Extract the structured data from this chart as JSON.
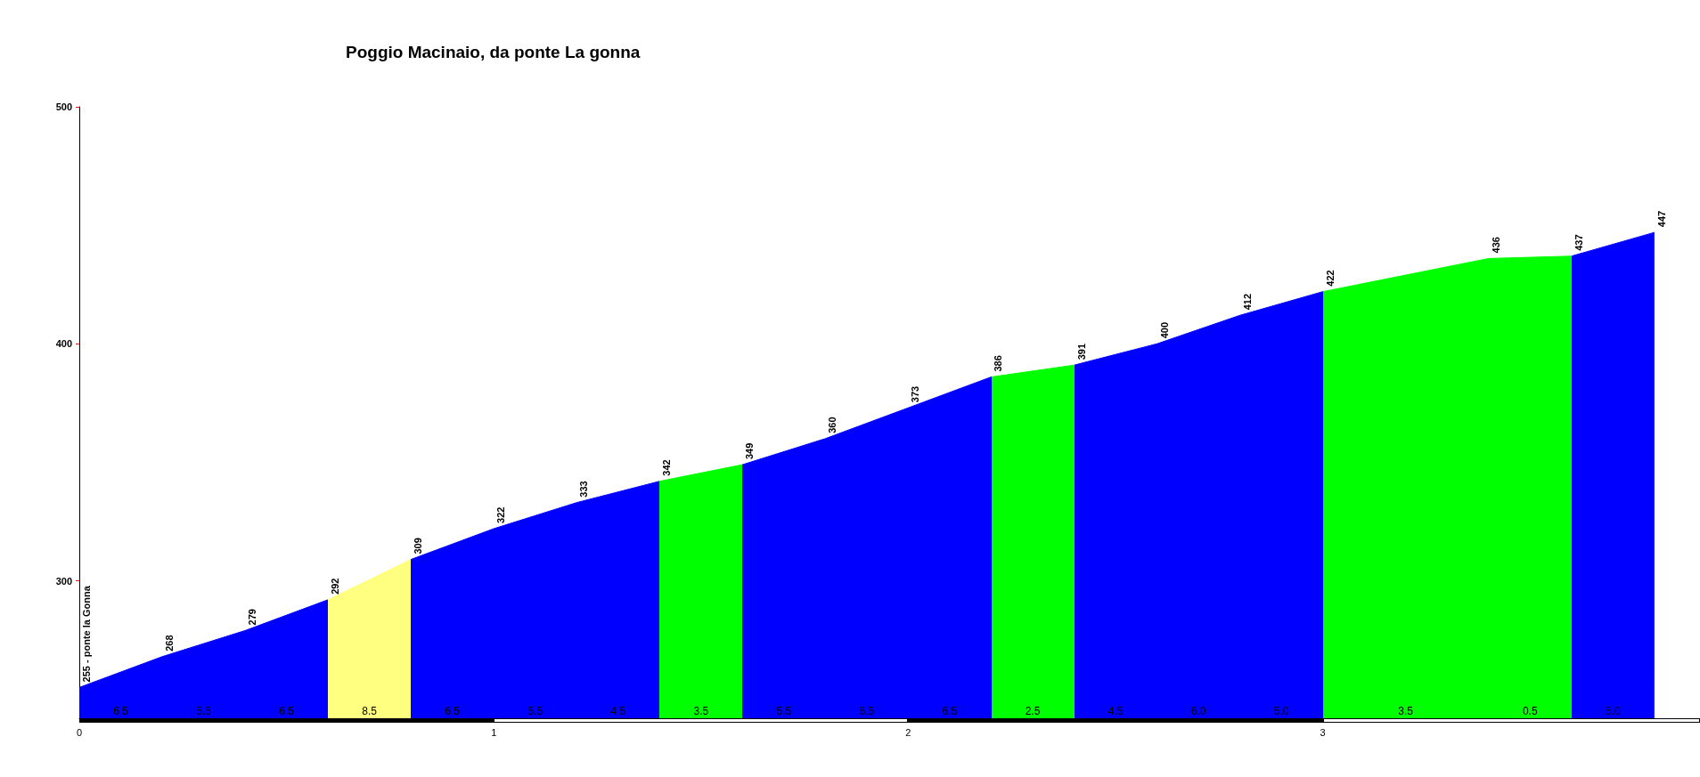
{
  "chart_data": {
    "type": "area",
    "title": "Poggio Macinaio, da ponte La gonna",
    "x": [
      0,
      0.2,
      0.4,
      0.6,
      0.8,
      1,
      1.2,
      1.4,
      1.6,
      1.8,
      2,
      2.2,
      2.4,
      2.6,
      2.8,
      3,
      3.4,
      3.6,
      3.8
    ],
    "values": [
      255,
      268,
      279,
      292,
      309,
      322,
      333,
      342,
      349,
      360,
      373,
      386,
      391,
      400,
      412,
      422,
      436,
      437,
      447
    ],
    "value_labels": [
      "255 - ponte la Gonna",
      "268",
      "279",
      "292",
      "309",
      "322",
      "333",
      "342",
      "349",
      "360",
      "373",
      "386",
      "391",
      "400",
      "412",
      "422",
      "436",
      "437",
      "447"
    ],
    "colors": [
      "#0000ff",
      "#0000ff",
      "#0000ff",
      "#0000ff",
      "#ffff80",
      "#0000ff",
      "#0000ff",
      "#0000ff",
      "#00ff00",
      "#0000ff",
      "#0000ff",
      "#0000ff",
      "#00ff00",
      "#0000ff",
      "#0000ff",
      "#0000ff",
      "#00ff00",
      "#00ff00",
      "#0000ff"
    ],
    "annotations": [
      "6.5",
      "5.5",
      "6.5",
      "8.5",
      "6.5",
      "5.5",
      "4.5",
      "3.5",
      "5.5",
      "6.5",
      "6.5",
      "2.5",
      "4.5",
      "6.0",
      "5.0",
      "3.5",
      "0.5",
      "5.0"
    ],
    "xlim": [
      0,
      3.91
    ],
    "xticks": [
      0,
      1,
      2,
      3
    ],
    "ylim": [
      242,
      500
    ],
    "yticks": [
      300,
      400,
      500
    ],
    "grid": false,
    "marker": "none"
  }
}
